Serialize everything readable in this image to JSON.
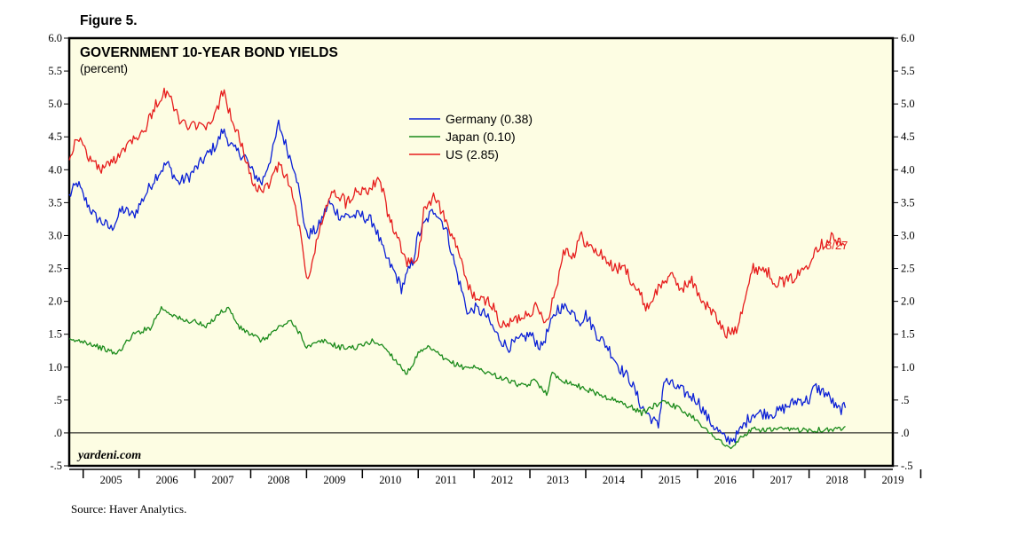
{
  "figure_label": "Figure 5.",
  "source": "Source: Haver Analytics.",
  "watermark": "yardeni.com",
  "end_date_label": "8/27",
  "colors": {
    "background": "#ffffff",
    "plot_bg": "#fdfde3",
    "germany": "#0a1fd6",
    "japan": "#1a8a1a",
    "us": "#e61c1c",
    "end_label": "#e61c1c"
  },
  "chart_data": {
    "type": "line",
    "title": "GOVERNMENT 10-YEAR BOND YIELDS",
    "subtitle": "(percent)",
    "xlabel": "",
    "ylabel": "percent",
    "xlim": [
      2004.75,
      2019.5
    ],
    "ylim": [
      -0.5,
      6.0
    ],
    "y_ticks": [
      6.0,
      5.5,
      5.0,
      4.5,
      4.0,
      3.5,
      3.0,
      2.5,
      2.0,
      1.5,
      1.0,
      0.5,
      0.0,
      -0.5
    ],
    "y_tick_labels": [
      "6.0",
      "5.5",
      "5.0",
      "4.5",
      "4.0",
      "3.5",
      "3.0",
      "2.5",
      "2.0",
      "1.5",
      "1.0",
      ".5",
      ".0",
      "-.5"
    ],
    "x_tick_labels": [
      "2005",
      "2006",
      "2007",
      "2008",
      "2009",
      "2010",
      "2011",
      "2012",
      "2013",
      "2014",
      "2015",
      "2016",
      "2017",
      "2018",
      "2019"
    ],
    "zero_line": true,
    "grid": false,
    "legend_position": "top-center",
    "series": [
      {
        "name": "Germany (0.38)",
        "color_key": "germany",
        "x": [
          2004.75,
          2004.9,
          2005.0,
          2005.2,
          2005.5,
          2005.7,
          2005.9,
          2006.1,
          2006.3,
          2006.5,
          2006.7,
          2006.9,
          2007.0,
          2007.2,
          2007.4,
          2007.5,
          2007.7,
          2007.9,
          2008.0,
          2008.2,
          2008.4,
          2008.5,
          2008.7,
          2008.8,
          2008.9,
          2009.0,
          2009.2,
          2009.4,
          2009.6,
          2009.8,
          2010.0,
          2010.2,
          2010.4,
          2010.6,
          2010.7,
          2010.9,
          2011.0,
          2011.2,
          2011.3,
          2011.5,
          2011.7,
          2011.9,
          2012.0,
          2012.2,
          2012.4,
          2012.6,
          2012.8,
          2013.0,
          2013.2,
          2013.4,
          2013.5,
          2013.7,
          2013.9,
          2014.0,
          2014.2,
          2014.4,
          2014.6,
          2014.8,
          2015.0,
          2015.1,
          2015.3,
          2015.4,
          2015.6,
          2015.8,
          2016.0,
          2016.2,
          2016.4,
          2016.5,
          2016.6,
          2016.7,
          2016.9,
          2017.0,
          2017.2,
          2017.4,
          2017.6,
          2017.8,
          2018.0,
          2018.1,
          2018.3,
          2018.4,
          2018.5,
          2018.65
        ],
        "values": [
          3.6,
          3.8,
          3.6,
          3.3,
          3.1,
          3.4,
          3.3,
          3.6,
          3.9,
          4.1,
          3.8,
          3.9,
          4.0,
          4.2,
          4.4,
          4.6,
          4.3,
          4.2,
          4.0,
          3.8,
          4.3,
          4.7,
          4.2,
          4.0,
          3.5,
          3.0,
          3.1,
          3.5,
          3.3,
          3.3,
          3.3,
          3.2,
          2.7,
          2.4,
          2.2,
          2.6,
          3.0,
          3.3,
          3.4,
          3.1,
          2.4,
          1.8,
          1.9,
          1.8,
          1.5,
          1.3,
          1.4,
          1.5,
          1.3,
          1.7,
          1.9,
          1.9,
          1.7,
          1.8,
          1.5,
          1.3,
          1.0,
          0.8,
          0.4,
          0.3,
          0.1,
          0.8,
          0.7,
          0.6,
          0.5,
          0.2,
          0.0,
          -0.1,
          -0.1,
          -0.05,
          0.2,
          0.3,
          0.3,
          0.3,
          0.4,
          0.5,
          0.5,
          0.7,
          0.6,
          0.5,
          0.35,
          0.38
        ]
      },
      {
        "name": "Japan (0.10)",
        "color_key": "japan",
        "x": [
          2004.75,
          2005.0,
          2005.3,
          2005.6,
          2005.9,
          2006.2,
          2006.4,
          2006.6,
          2006.8,
          2007.0,
          2007.2,
          2007.4,
          2007.6,
          2007.8,
          2008.0,
          2008.2,
          2008.5,
          2008.7,
          2008.9,
          2009.0,
          2009.3,
          2009.6,
          2009.9,
          2010.2,
          2010.4,
          2010.6,
          2010.8,
          2011.0,
          2011.2,
          2011.5,
          2011.8,
          2012.0,
          2012.3,
          2012.6,
          2012.9,
          2013.1,
          2013.3,
          2013.4,
          2013.6,
          2013.9,
          2014.2,
          2014.5,
          2014.8,
          2015.0,
          2015.2,
          2015.4,
          2015.6,
          2015.8,
          2016.0,
          2016.2,
          2016.4,
          2016.5,
          2016.6,
          2016.8,
          2017.0,
          2017.3,
          2017.6,
          2017.9,
          2018.2,
          2018.5,
          2018.65
        ],
        "values": [
          1.4,
          1.4,
          1.3,
          1.2,
          1.5,
          1.6,
          1.9,
          1.8,
          1.7,
          1.7,
          1.6,
          1.8,
          1.9,
          1.6,
          1.5,
          1.4,
          1.6,
          1.7,
          1.5,
          1.3,
          1.4,
          1.3,
          1.3,
          1.4,
          1.3,
          1.1,
          0.9,
          1.2,
          1.3,
          1.1,
          1.0,
          1.0,
          0.9,
          0.8,
          0.7,
          0.8,
          0.6,
          0.9,
          0.8,
          0.7,
          0.6,
          0.5,
          0.4,
          0.3,
          0.4,
          0.5,
          0.4,
          0.3,
          0.2,
          0.0,
          -0.1,
          -0.2,
          -0.25,
          -0.05,
          0.05,
          0.05,
          0.05,
          0.05,
          0.05,
          0.05,
          0.1
        ]
      },
      {
        "name": "US (2.85)",
        "color_key": "us",
        "x": [
          2004.75,
          2004.9,
          2005.1,
          2005.3,
          2005.5,
          2005.7,
          2005.9,
          2006.1,
          2006.3,
          2006.5,
          2006.7,
          2006.9,
          2007.0,
          2007.2,
          2007.4,
          2007.5,
          2007.7,
          2007.9,
          2008.0,
          2008.2,
          2008.4,
          2008.5,
          2008.7,
          2008.9,
          2009.0,
          2009.1,
          2009.3,
          2009.5,
          2009.7,
          2009.9,
          2010.1,
          2010.3,
          2010.5,
          2010.7,
          2010.8,
          2011.0,
          2011.1,
          2011.3,
          2011.5,
          2011.7,
          2011.9,
          2012.1,
          2012.3,
          2012.5,
          2012.7,
          2012.9,
          2013.1,
          2013.3,
          2013.5,
          2013.6,
          2013.8,
          2013.9,
          2014.1,
          2014.3,
          2014.5,
          2014.7,
          2014.9,
          2015.1,
          2015.3,
          2015.5,
          2015.7,
          2015.9,
          2016.1,
          2016.3,
          2016.5,
          2016.7,
          2016.9,
          2017.0,
          2017.2,
          2017.4,
          2017.6,
          2017.8,
          2018.0,
          2018.1,
          2018.3,
          2018.4,
          2018.5,
          2018.65
        ],
        "values": [
          4.2,
          4.5,
          4.2,
          4.0,
          4.1,
          4.3,
          4.5,
          4.6,
          5.0,
          5.2,
          4.8,
          4.6,
          4.7,
          4.6,
          4.9,
          5.2,
          4.7,
          4.2,
          3.9,
          3.6,
          3.9,
          4.1,
          3.8,
          3.0,
          2.3,
          2.6,
          3.3,
          3.7,
          3.5,
          3.7,
          3.7,
          3.9,
          3.2,
          2.8,
          2.6,
          2.6,
          3.4,
          3.6,
          3.2,
          2.8,
          2.2,
          2.0,
          2.0,
          1.6,
          1.7,
          1.8,
          1.9,
          1.7,
          2.3,
          2.8,
          2.7,
          3.0,
          2.8,
          2.7,
          2.5,
          2.5,
          2.2,
          1.9,
          2.2,
          2.4,
          2.2,
          2.3,
          2.0,
          1.8,
          1.5,
          1.6,
          2.2,
          2.5,
          2.5,
          2.3,
          2.3,
          2.4,
          2.6,
          2.8,
          2.9,
          3.0,
          2.9,
          2.85
        ]
      }
    ]
  }
}
